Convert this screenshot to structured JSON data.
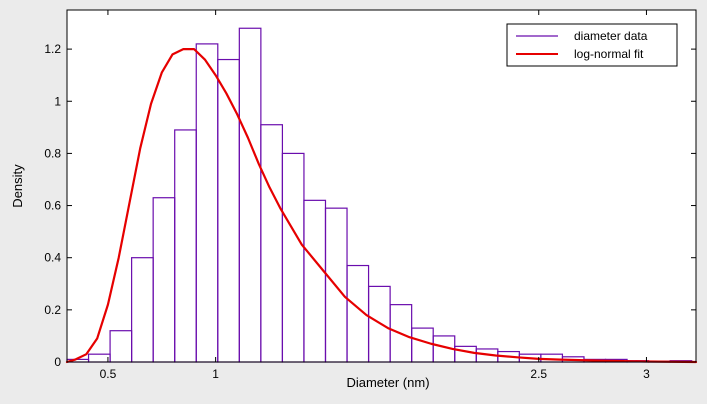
{
  "chart_data": {
    "type": "bar",
    "xlabel": "Diameter (nm)",
    "ylabel": "Density",
    "xlim": [
      0.31,
      3.23
    ],
    "ylim": [
      0,
      1.35
    ],
    "xticks": [
      "0.5",
      "1",
      "2.5",
      "3"
    ],
    "xtick_values": [
      0.5,
      1.0,
      2.5,
      3.0
    ],
    "yticks": [
      "0",
      "0.2",
      "0.4",
      "0.6",
      "0.8",
      "1",
      "1.2"
    ],
    "ytick_values": [
      0,
      0.2,
      0.4,
      0.6,
      0.8,
      1.0,
      1.2
    ],
    "grid": false,
    "legend_position": "top-right",
    "series": [
      {
        "name": "diameter data",
        "kind": "histogram",
        "color": "#6a0dad",
        "bin_edges": [
          0.31,
          0.41,
          0.51,
          0.61,
          0.71,
          0.81,
          0.91,
          1.01,
          1.11,
          1.21,
          1.31,
          1.41,
          1.51,
          1.61,
          1.71,
          1.81,
          1.91,
          2.01,
          2.11,
          2.21,
          2.31,
          2.41,
          2.51,
          2.61,
          2.71,
          2.81,
          2.91,
          3.01,
          3.11,
          3.21
        ],
        "values": [
          0.01,
          0.03,
          0.12,
          0.4,
          0.63,
          0.89,
          1.22,
          1.16,
          1.28,
          0.91,
          0.8,
          0.62,
          0.59,
          0.37,
          0.29,
          0.22,
          0.13,
          0.1,
          0.06,
          0.05,
          0.04,
          0.03,
          0.03,
          0.02,
          0.01,
          0.01,
          0.005,
          0.003,
          0.005
        ]
      },
      {
        "name": "log-normal fit",
        "kind": "line",
        "color": "#e60000",
        "x": [
          0.31,
          0.35,
          0.4,
          0.45,
          0.5,
          0.55,
          0.6,
          0.65,
          0.7,
          0.75,
          0.8,
          0.85,
          0.9,
          0.95,
          1.0,
          1.05,
          1.1,
          1.15,
          1.2,
          1.25,
          1.3,
          1.35,
          1.4,
          1.5,
          1.6,
          1.7,
          1.8,
          1.9,
          2.0,
          2.1,
          2.2,
          2.3,
          2.4,
          2.5,
          2.6,
          2.8,
          3.0,
          3.23
        ],
        "y": [
          0.0,
          0.01,
          0.03,
          0.09,
          0.22,
          0.4,
          0.61,
          0.82,
          0.99,
          1.11,
          1.18,
          1.2,
          1.2,
          1.16,
          1.1,
          1.03,
          0.95,
          0.86,
          0.76,
          0.67,
          0.59,
          0.52,
          0.45,
          0.35,
          0.25,
          0.18,
          0.13,
          0.095,
          0.07,
          0.05,
          0.035,
          0.025,
          0.018,
          0.012,
          0.009,
          0.005,
          0.002,
          0.0
        ]
      }
    ]
  }
}
